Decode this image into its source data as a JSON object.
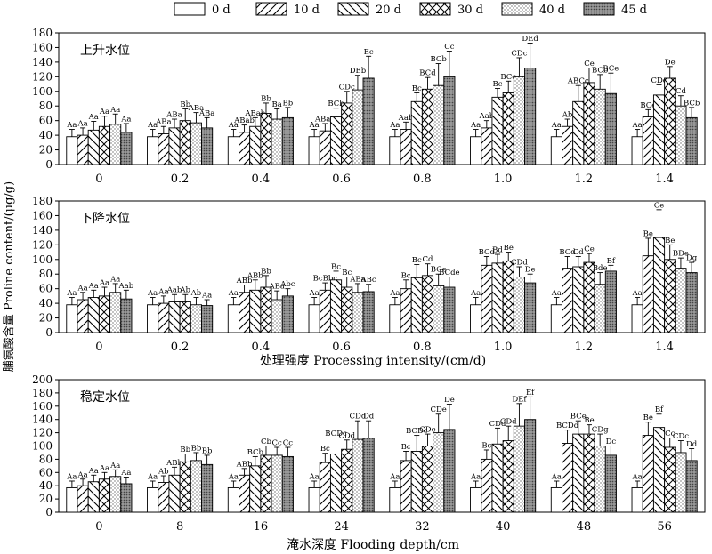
{
  "y_axis_label": "脯氨酸含量 Proline content/(μg/g)",
  "legend": [
    {
      "label": "0 d",
      "pattern": "blank"
    },
    {
      "label": "10 d",
      "pattern": "fslash"
    },
    {
      "label": "20 d",
      "pattern": "bslash"
    },
    {
      "label": "30 d",
      "pattern": "cross"
    },
    {
      "label": "40 d",
      "pattern": "dots"
    },
    {
      "label": "45 d",
      "pattern": "dense"
    }
  ],
  "chart_data": [
    {
      "type": "bar",
      "title": "上升水位",
      "xlabel": "",
      "categories": [
        "0",
        "0.2",
        "0.4",
        "0.6",
        "0.8",
        "1.0",
        "1.2",
        "1.4"
      ],
      "ylim": [
        0,
        180
      ],
      "yticks": [
        0,
        20,
        40,
        60,
        80,
        100,
        120,
        140,
        160,
        180
      ],
      "series": [
        {
          "name": "0 d",
          "values": [
            38,
            38,
            38,
            38,
            38,
            38,
            38,
            38
          ],
          "err": [
            10,
            10,
            10,
            10,
            10,
            10,
            10,
            10
          ],
          "labels": [
            "Aa",
            "Aa",
            "Aa",
            "Aa",
            "Aa",
            "Aa",
            "Aa",
            "Aa"
          ]
        },
        {
          "name": "10 d",
          "values": [
            40,
            42,
            44,
            46,
            48,
            50,
            52,
            65
          ],
          "err": [
            10,
            10,
            10,
            10,
            10,
            10,
            10,
            10
          ],
          "labels": [
            "Aa",
            "ABa",
            "ABab",
            "ABab",
            "Aab",
            "Aab",
            "Ab",
            "BCe"
          ]
        },
        {
          "name": "20 d",
          "values": [
            47,
            50,
            52,
            65,
            86,
            92,
            86,
            95
          ],
          "err": [
            12,
            12,
            12,
            12,
            12,
            12,
            22,
            14
          ],
          "labels": [
            "Aa",
            "ABa",
            "ABab",
            "BCb",
            "Bc",
            "Bc",
            "ABCc",
            "CDc"
          ]
        },
        {
          "name": "30 d",
          "values": [
            52,
            60,
            70,
            84,
            103,
            98,
            112,
            118
          ],
          "err": [
            14,
            16,
            14,
            16,
            16,
            16,
            20,
            16
          ],
          "labels": [
            "Aa",
            "Bb",
            "Bb",
            "CDc",
            "BCd",
            "BCc",
            "Ce",
            "De"
          ]
        },
        {
          "name": "40 d",
          "values": [
            55,
            57,
            62,
            102,
            108,
            120,
            103,
            80
          ],
          "err": [
            14,
            14,
            14,
            20,
            30,
            26,
            20,
            14
          ],
          "labels": [
            "Aa",
            "ABa",
            "Ba",
            "DEb",
            "BCb",
            "CDc",
            "BCb",
            "Cd"
          ]
        },
        {
          "name": "45 d",
          "values": [
            44,
            50,
            64,
            118,
            120,
            132,
            97,
            64
          ],
          "err": [
            12,
            14,
            14,
            30,
            35,
            34,
            28,
            14
          ],
          "labels": [
            "Aa",
            "ABa",
            "Bb",
            "Ec",
            "Cc",
            "DEd",
            "BCe",
            "BCb"
          ]
        }
      ]
    },
    {
      "type": "bar",
      "title": "下降水位",
      "xlabel": "处理强度 Processing intensity/(cm/d)",
      "categories": [
        "0",
        "0.2",
        "0.4",
        "0.6",
        "0.8",
        "1.0",
        "1.2",
        "1.4"
      ],
      "ylim": [
        0,
        180
      ],
      "yticks": [
        0,
        20,
        40,
        60,
        80,
        100,
        120,
        140,
        160,
        180
      ],
      "series": [
        {
          "name": "0 d",
          "values": [
            38,
            38,
            38,
            38,
            38,
            38,
            38,
            38
          ],
          "err": [
            10,
            10,
            10,
            10,
            10,
            10,
            10,
            10
          ],
          "labels": [
            "Aa",
            "Aa",
            "Aa",
            "Aa",
            "Aa",
            "Aa",
            "Aa",
            "Aa"
          ]
        },
        {
          "name": "10 d",
          "values": [
            45,
            40,
            55,
            58,
            60,
            92,
            88,
            105
          ],
          "err": [
            10,
            10,
            10,
            10,
            12,
            12,
            16,
            24
          ],
          "labels": [
            "Aa",
            "Aa",
            "ABb",
            "BcBbc",
            "Bc",
            "BCd",
            "BCd",
            "Be"
          ]
        },
        {
          "name": "20 d",
          "values": [
            48,
            42,
            58,
            72,
            75,
            95,
            90,
            130
          ],
          "err": [
            10,
            10,
            14,
            12,
            18,
            12,
            14,
            38
          ],
          "labels": [
            "Aa",
            "Aab",
            "ABb",
            "Bc",
            "Bc",
            "Bd",
            "Cd",
            "Ce"
          ]
        },
        {
          "name": "30 d",
          "values": [
            50,
            42,
            62,
            62,
            78,
            98,
            96,
            100
          ],
          "err": [
            12,
            10,
            16,
            14,
            16,
            12,
            12,
            20
          ],
          "labels": [
            "Aa",
            "Ab",
            "Bb",
            "Bc",
            "Cd",
            "Be",
            "Ce",
            "Be"
          ]
        },
        {
          "name": "40 d",
          "values": [
            55,
            38,
            45,
            55,
            64,
            76,
            66,
            88
          ],
          "err": [
            12,
            10,
            12,
            12,
            16,
            14,
            16,
            14
          ],
          "labels": [
            "Aa",
            "Ab",
            "ABa",
            "ABa",
            "BCe",
            "CDd",
            "Bde",
            "BDe"
          ]
        },
        {
          "name": "45 d",
          "values": [
            46,
            37,
            50,
            56,
            62,
            68,
            84,
            82
          ],
          "err": [
            12,
            8,
            10,
            10,
            14,
            12,
            8,
            14
          ],
          "labels": [
            "Aab",
            "Aa",
            "Abc",
            "ABc",
            "BCde",
            "De",
            "Bf",
            "Dg"
          ]
        }
      ]
    },
    {
      "type": "bar",
      "title": "稳定水位",
      "xlabel": "淹水深度 Flooding depth/cm",
      "categories": [
        "0",
        "8",
        "16",
        "24",
        "32",
        "40",
        "48",
        "56"
      ],
      "ylim": [
        0,
        200
      ],
      "yticks": [
        0,
        20,
        40,
        60,
        80,
        100,
        120,
        140,
        160,
        180,
        200
      ],
      "series": [
        {
          "name": "0 d",
          "values": [
            37,
            37,
            37,
            37,
            37,
            37,
            37,
            37
          ],
          "err": [
            10,
            10,
            10,
            10,
            10,
            10,
            10,
            10
          ],
          "labels": [
            "Aa",
            "Aa",
            "Aa",
            "Aa",
            "Aa",
            "Aa",
            "Aa",
            "Aa"
          ]
        },
        {
          "name": "10 d",
          "values": [
            40,
            45,
            56,
            75,
            78,
            80,
            104,
            116
          ],
          "err": [
            10,
            10,
            10,
            14,
            14,
            14,
            20,
            20
          ],
          "labels": [
            "Aa",
            "Ab",
            "ABb",
            "Bc",
            "Bc",
            "Bc",
            "BCDd",
            "Be"
          ]
        },
        {
          "name": "20 d",
          "values": [
            46,
            56,
            70,
            88,
            92,
            103,
            118,
            128
          ],
          "err": [
            10,
            12,
            14,
            24,
            24,
            24,
            20,
            20
          ],
          "labels": [
            "Aa",
            "ABb",
            "BCb",
            "BCDc",
            "BCDc",
            "CDd",
            "BCe",
            "Bf"
          ]
        },
        {
          "name": "30 d",
          "values": [
            50,
            76,
            86,
            95,
            100,
            108,
            118,
            98
          ],
          "err": [
            10,
            12,
            14,
            14,
            18,
            22,
            14,
            14
          ],
          "labels": [
            "Aa",
            "Bb",
            "Cb",
            "CDd",
            "CDe",
            "CDd",
            "Be",
            "Cc"
          ]
        },
        {
          "name": "40 d",
          "values": [
            54,
            78,
            86,
            110,
            120,
            130,
            100,
            90
          ],
          "err": [
            10,
            12,
            12,
            28,
            28,
            34,
            18,
            18
          ],
          "labels": [
            "Aa",
            "Bb",
            "Cc",
            "CDd",
            "CDe",
            "DEf",
            "CDg",
            "CDc"
          ]
        },
        {
          "name": "45 d",
          "values": [
            43,
            72,
            84,
            112,
            125,
            140,
            86,
            78
          ],
          "err": [
            10,
            14,
            14,
            26,
            38,
            34,
            14,
            18
          ],
          "labels": [
            "Aa",
            "Bb",
            "Cc",
            "Dd",
            "De",
            "Ef",
            "Dc",
            "Dd"
          ]
        }
      ]
    }
  ]
}
